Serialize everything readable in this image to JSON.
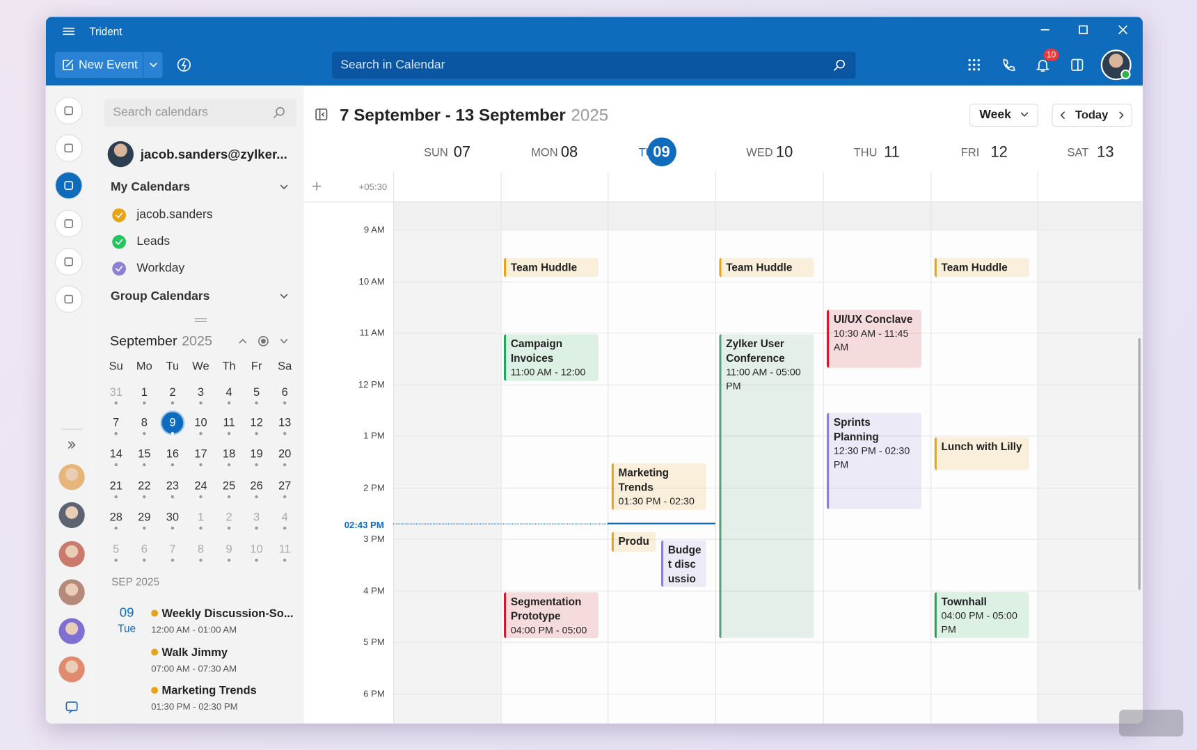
{
  "app": {
    "title": "Trident"
  },
  "toolbar": {
    "new_event": "New Event",
    "search_placeholder": "Search in Calendar",
    "notification_count": "10"
  },
  "sidebar": {
    "search_placeholder": "Search calendars",
    "account": "jacob.sanders@zylker...",
    "my_calendars": "My Calendars",
    "calendars": [
      {
        "name": "jacob.sanders",
        "color": "#e8a317"
      },
      {
        "name": "Leads",
        "color": "#22c55e"
      },
      {
        "name": "Workday",
        "color": "#8b7fd6"
      }
    ],
    "group_calendars": "Group Calendars"
  },
  "mini_calendar": {
    "month": "September",
    "year": "2025",
    "weekdays": [
      "Su",
      "Mo",
      "Tu",
      "We",
      "Th",
      "Fr",
      "Sa"
    ],
    "weeks": [
      [
        31,
        1,
        2,
        3,
        4,
        5,
        6
      ],
      [
        7,
        8,
        9,
        10,
        11,
        12,
        13
      ],
      [
        14,
        15,
        16,
        17,
        18,
        19,
        20
      ],
      [
        21,
        22,
        23,
        24,
        25,
        26,
        27
      ],
      [
        28,
        29,
        30,
        1,
        2,
        3,
        4
      ],
      [
        5,
        6,
        7,
        8,
        9,
        10,
        11
      ]
    ]
  },
  "agenda": {
    "heading": "SEP 2025",
    "day": "09",
    "weekday": "Tue",
    "items": [
      {
        "title": "Weekly Discussion-So...",
        "time": "12:00 AM - 01:00 AM",
        "color": "#e8a317"
      },
      {
        "title": "Walk Jimmy",
        "time": "07:00 AM - 07:30 AM",
        "color": "#e8a317"
      },
      {
        "title": "Marketing Trends",
        "time": "01:30 PM - 02:30 PM",
        "color": "#e8a317"
      }
    ]
  },
  "calendar": {
    "range": "7 September - 13 September",
    "year": "2025",
    "view": "Week",
    "today": "Today",
    "timezone": "+05:30",
    "now": "02:43 PM",
    "hours": [
      "9 AM",
      "10 AM",
      "11 AM",
      "12 PM",
      "1 PM",
      "2 PM",
      "3 PM",
      "4 PM",
      "5 PM",
      "6 PM"
    ],
    "days": [
      {
        "dow": "SUN",
        "date": "07",
        "events": []
      },
      {
        "dow": "MON",
        "date": "08",
        "events": [
          {
            "title": "Team Huddle",
            "color": "#e8a317"
          },
          {
            "title": "Campaign Invoices",
            "time": "11:00 AM - 12:00",
            "color": "#22a559"
          },
          {
            "title": "Segmentation Prototype",
            "time": "04:00 PM - 05:00",
            "color": "#d11a2a"
          }
        ]
      },
      {
        "dow": "TUE",
        "date": "09",
        "events": [
          {
            "title": "Marketing Trends",
            "time": "01:30 PM - 02:30",
            "color": "#e8a317"
          },
          {
            "title": "Produc",
            "color": "#e8a317"
          },
          {
            "title": "Budget discussion",
            "color": "#8b7fd6"
          }
        ]
      },
      {
        "dow": "WED",
        "date": "10",
        "events": [
          {
            "title": "Team Huddle",
            "color": "#e8a317"
          },
          {
            "title": "Zylker User Conference",
            "time": "11:00 AM - 05:00 PM",
            "color": "#5a9e7a"
          }
        ]
      },
      {
        "dow": "THU",
        "date": "11",
        "events": [
          {
            "title": "UI/UX Conclave",
            "time": "10:30 AM - 11:45 AM",
            "color": "#d11a2a"
          },
          {
            "title": "Sprints Planning",
            "time": "12:30 PM - 02:30 PM",
            "color": "#8b7fd6"
          }
        ]
      },
      {
        "dow": "FRI",
        "date": "12",
        "events": [
          {
            "title": "Team Huddle",
            "color": "#e8a317"
          },
          {
            "title": "Lunch with Lilly",
            "color": "#e8a317"
          },
          {
            "title": "Townhall",
            "time": "04:00 PM - 05:00 PM",
            "color": "#22a559"
          }
        ]
      },
      {
        "dow": "SAT",
        "date": "13",
        "events": []
      }
    ]
  }
}
